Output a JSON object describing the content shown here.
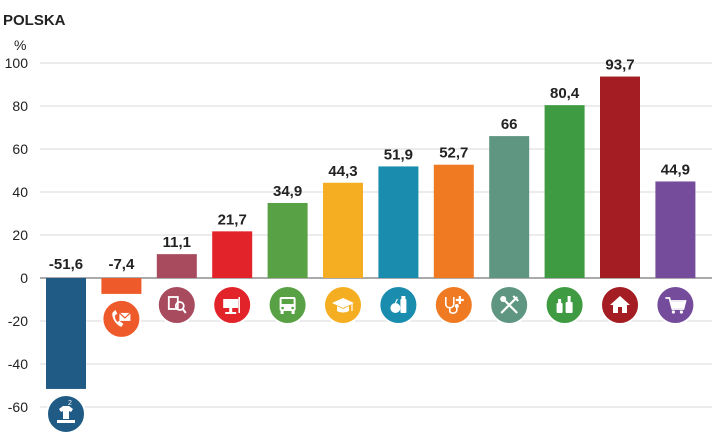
{
  "chart_data": {
    "type": "bar",
    "title": "POLSKA",
    "ylabel": "%",
    "ylim": [
      -60,
      100
    ],
    "yticks": [
      "100",
      "80",
      "60",
      "40",
      "20",
      "0",
      "-20",
      "-40",
      "-60"
    ],
    "grid": true,
    "values": [
      -51.6,
      -7.4,
      11.1,
      21.7,
      34.9,
      44.3,
      51.9,
      52.7,
      66,
      80.4,
      93.7,
      44.9
    ],
    "data_labels": [
      "-51,6",
      "-7,4",
      "11,1",
      "21,7",
      "34,9",
      "44,3",
      "51,9",
      "52,7",
      "66",
      "80,4",
      "93,7",
      "44,9"
    ],
    "colors": [
      "#1f5b84",
      "#ef5a2a",
      "#a84b5f",
      "#e2232a",
      "#58a144",
      "#f5ae22",
      "#1a8cae",
      "#ef7a22",
      "#5f9681",
      "#3e9b41",
      "#a31d22",
      "#744c9b"
    ],
    "icons": [
      "clothing-shoes-icon",
      "phone-mail-icon",
      "leisure-culture-icon",
      "furnishings-icon",
      "transport-bus-icon",
      "education-cap-icon",
      "food-icon",
      "health-icon",
      "restaurant-icon",
      "alcohol-icon",
      "housing-icon",
      "shopping-cart-icon"
    ]
  }
}
